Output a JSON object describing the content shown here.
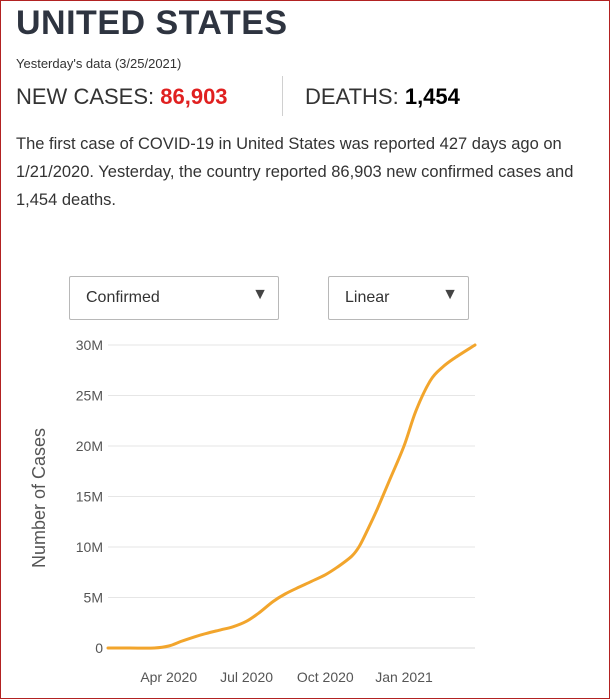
{
  "header": {
    "title": "UNITED STATES",
    "subtitle": "Yesterday's data (3/25/2021)",
    "new_cases_label": "NEW CASES: ",
    "new_cases_value": "86,903",
    "deaths_label": "DEATHS: ",
    "deaths_value": "1,454"
  },
  "summary": {
    "text": "The first case of COVID-19 in United States was reported 427 days ago on 1/21/2020. Yesterday, the country reported 86,903 new confirmed cases and 1,454 deaths."
  },
  "controls": {
    "metric_select": "Confirmed",
    "scale_select": "Linear"
  },
  "colors": {
    "line": "#f2a52c",
    "new_cases": "#e02020",
    "grid": "#e6e6e6"
  },
  "chart_data": {
    "type": "line",
    "title": "",
    "xlabel": "",
    "ylabel": "Number of Cases",
    "x_ticks": [
      "Apr 2020",
      "Jul 2020",
      "Oct 2020",
      "Jan 2021"
    ],
    "y_ticks": [
      "0",
      "5M",
      "10M",
      "15M",
      "20M",
      "25M",
      "30M"
    ],
    "ylim": [
      0,
      30000000
    ],
    "xlim": [
      "2020-01-21",
      "2021-03-25"
    ],
    "grid": true,
    "series": [
      {
        "name": "",
        "x": [
          "2020-01-21",
          "2020-02-15",
          "2020-03-15",
          "2020-04-01",
          "2020-04-15",
          "2020-05-01",
          "2020-05-15",
          "2020-06-01",
          "2020-06-15",
          "2020-07-01",
          "2020-07-15",
          "2020-08-01",
          "2020-08-15",
          "2020-09-01",
          "2020-09-15",
          "2020-10-01",
          "2020-10-15",
          "2020-11-01",
          "2020-11-10",
          "2020-11-20",
          "2020-12-01",
          "2020-12-15",
          "2021-01-01",
          "2021-01-15",
          "2021-02-01",
          "2021-02-15",
          "2021-03-01",
          "2021-03-25"
        ],
        "values": [
          1,
          15,
          3500,
          200000,
          640000,
          1100000,
          1450000,
          1800000,
          2100000,
          2650000,
          3450000,
          4600000,
          5350000,
          6050000,
          6600000,
          7250000,
          8000000,
          9100000,
          10100000,
          11800000,
          13800000,
          16600000,
          20000000,
          23500000,
          26500000,
          27800000,
          28700000,
          30000000
        ]
      }
    ]
  }
}
